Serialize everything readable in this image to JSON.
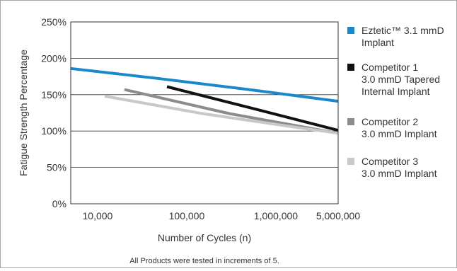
{
  "chart_data": {
    "type": "line",
    "title": "",
    "xlabel": "Number of Cycles (n)",
    "ylabel": "Fatigue Strength Percentage",
    "xscale": "log",
    "xlim": [
      5000,
      5000000
    ],
    "ylim": [
      0,
      250
    ],
    "y_ticks": [
      {
        "value": 0,
        "label": "0%"
      },
      {
        "value": 50,
        "label": "50%"
      },
      {
        "value": 100,
        "label": "100%"
      },
      {
        "value": 150,
        "label": "150%"
      },
      {
        "value": 200,
        "label": "200%"
      },
      {
        "value": 250,
        "label": "250%"
      }
    ],
    "x_ticks": [
      {
        "value": 10000,
        "label": "10,000"
      },
      {
        "value": 100000,
        "label": "100,000"
      },
      {
        "value": 1000000,
        "label": "1,000,000"
      },
      {
        "value": 5000000,
        "label": "5,000,000"
      }
    ],
    "grid": "horizontal",
    "legend_position": "right",
    "series": [
      {
        "legend_lines": [
          "Eztetic™ 3.1 mmD",
          "Implant"
        ],
        "color": "#1a88c9",
        "x": [
          5000,
          50000,
          500000,
          5000000
        ],
        "y": [
          186,
          172,
          157,
          141
        ]
      },
      {
        "legend_lines": [
          "Competitor 1",
          "3.0 mmD Tapered",
          "Internal Implant"
        ],
        "color": "#111111",
        "x": [
          60000,
          600000,
          5000000
        ],
        "y": [
          161,
          130,
          101
        ]
      },
      {
        "legend_lines": [
          "Competitor 2",
          "3.0 mmD Implant"
        ],
        "color": "#8c8c8c",
        "x": [
          20000,
          300000,
          5000000
        ],
        "y": [
          157,
          124,
          97
        ]
      },
      {
        "legend_lines": [
          "Competitor 3",
          "3.0 mmD Implant"
        ],
        "color": "#c8c8c8",
        "x": [
          12000,
          150000,
          1500000,
          5000000
        ],
        "y": [
          148,
          124,
          106,
          97
        ]
      }
    ],
    "footnote": "All Products were tested in increments of 5."
  }
}
